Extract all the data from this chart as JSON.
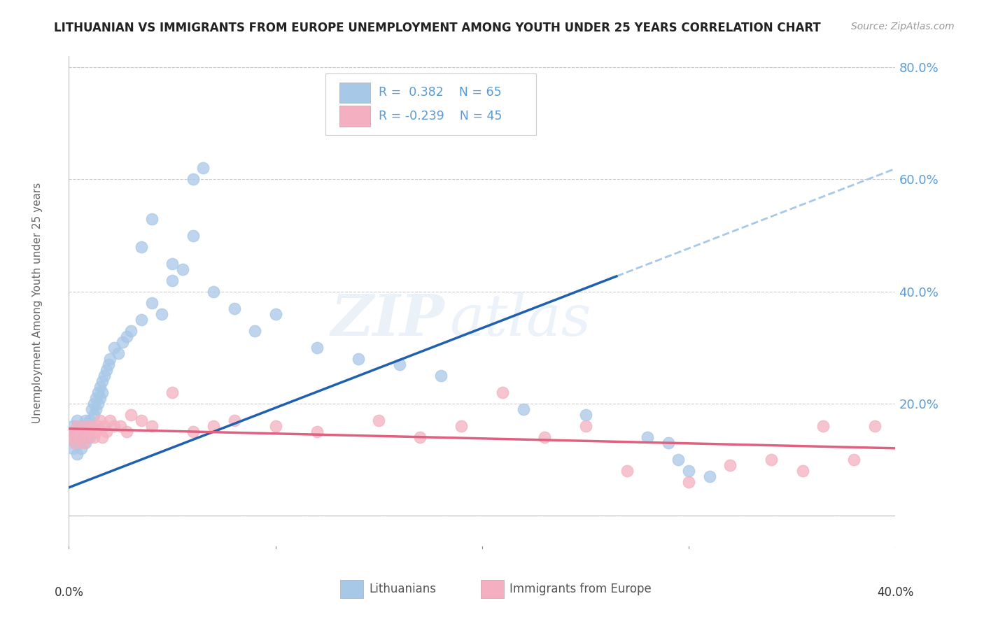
{
  "title": "LITHUANIAN VS IMMIGRANTS FROM EUROPE UNEMPLOYMENT AMONG YOUTH UNDER 25 YEARS CORRELATION CHART",
  "source": "Source: ZipAtlas.com",
  "ylabel": "Unemployment Among Youth under 25 years",
  "xmin": 0.0,
  "xmax": 0.4,
  "ymin": -0.06,
  "ymax": 0.82,
  "yticks": [
    0.0,
    0.2,
    0.4,
    0.6,
    0.8
  ],
  "ytick_labels": [
    "",
    "20.0%",
    "40.0%",
    "60.0%",
    "80.0%"
  ],
  "right_axis_color": "#5b9bd5",
  "blue_color": "#a8c8e8",
  "pink_color": "#f4b0c0",
  "blue_line_color": "#2060b0",
  "pink_line_color": "#e06080",
  "dashed_line_color": "#a8c8e8",
  "watermark_zip": "ZIP",
  "watermark_atlas": "atlas",
  "lit_x": [
    0.001,
    0.002,
    0.002,
    0.003,
    0.003,
    0.004,
    0.004,
    0.005,
    0.005,
    0.006,
    0.006,
    0.007,
    0.007,
    0.008,
    0.008,
    0.009,
    0.01,
    0.01,
    0.011,
    0.011,
    0.012,
    0.012,
    0.013,
    0.013,
    0.014,
    0.014,
    0.015,
    0.015,
    0.016,
    0.016,
    0.017,
    0.018,
    0.019,
    0.02,
    0.022,
    0.024,
    0.026,
    0.028,
    0.03,
    0.035,
    0.04,
    0.045,
    0.05,
    0.055,
    0.06,
    0.065,
    0.035,
    0.04,
    0.05,
    0.06,
    0.07,
    0.08,
    0.09,
    0.1,
    0.12,
    0.14,
    0.16,
    0.18,
    0.22,
    0.25,
    0.28,
    0.29,
    0.295,
    0.3,
    0.31
  ],
  "lit_y": [
    0.14,
    0.12,
    0.16,
    0.13,
    0.15,
    0.11,
    0.17,
    0.13,
    0.15,
    0.12,
    0.16,
    0.14,
    0.16,
    0.13,
    0.17,
    0.15,
    0.14,
    0.17,
    0.16,
    0.19,
    0.18,
    0.2,
    0.19,
    0.21,
    0.2,
    0.22,
    0.21,
    0.23,
    0.22,
    0.24,
    0.25,
    0.26,
    0.27,
    0.28,
    0.3,
    0.29,
    0.31,
    0.32,
    0.33,
    0.35,
    0.38,
    0.36,
    0.42,
    0.44,
    0.5,
    0.62,
    0.48,
    0.53,
    0.45,
    0.6,
    0.4,
    0.37,
    0.33,
    0.36,
    0.3,
    0.28,
    0.27,
    0.25,
    0.19,
    0.18,
    0.14,
    0.13,
    0.1,
    0.08,
    0.07
  ],
  "immig_x": [
    0.001,
    0.002,
    0.003,
    0.004,
    0.005,
    0.006,
    0.007,
    0.008,
    0.009,
    0.01,
    0.011,
    0.012,
    0.013,
    0.014,
    0.015,
    0.016,
    0.017,
    0.018,
    0.02,
    0.022,
    0.025,
    0.028,
    0.03,
    0.035,
    0.04,
    0.05,
    0.06,
    0.07,
    0.08,
    0.1,
    0.12,
    0.15,
    0.17,
    0.19,
    0.21,
    0.23,
    0.25,
    0.27,
    0.3,
    0.32,
    0.34,
    0.355,
    0.365,
    0.38,
    0.39
  ],
  "immig_y": [
    0.14,
    0.15,
    0.13,
    0.16,
    0.14,
    0.15,
    0.13,
    0.16,
    0.14,
    0.15,
    0.16,
    0.14,
    0.15,
    0.16,
    0.17,
    0.14,
    0.16,
    0.15,
    0.17,
    0.16,
    0.16,
    0.15,
    0.18,
    0.17,
    0.16,
    0.22,
    0.15,
    0.16,
    0.17,
    0.16,
    0.15,
    0.17,
    0.14,
    0.16,
    0.22,
    0.14,
    0.16,
    0.08,
    0.06,
    0.09,
    0.1,
    0.08,
    0.16,
    0.1,
    0.16
  ]
}
